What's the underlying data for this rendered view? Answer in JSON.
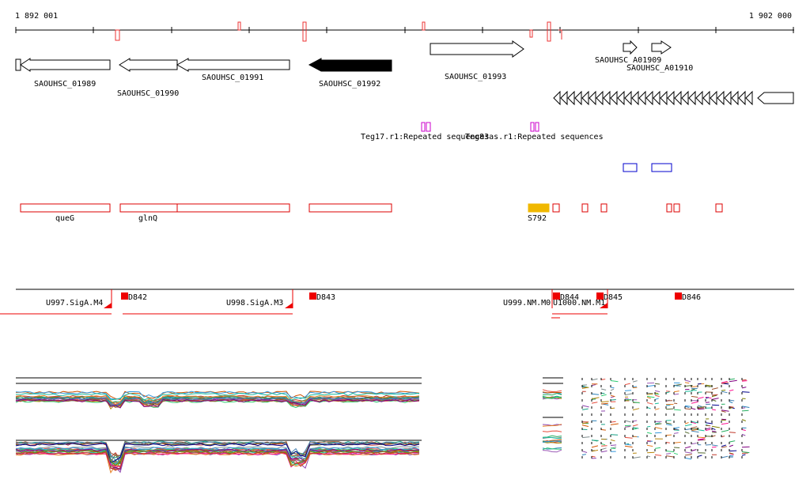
{
  "ruler": {
    "start_label": "1 892 001",
    "end_label": "1 902 000"
  },
  "genes": [
    {
      "label": "SAOUHSC_01989",
      "strand": "-",
      "filled": false
    },
    {
      "label": "SAOUHSC_01990",
      "strand": "-",
      "filled": false
    },
    {
      "label": "SAOUHSC_01991",
      "strand": "-",
      "filled": false
    },
    {
      "label": "SAOUHSC_01992",
      "strand": "-",
      "filled": true
    },
    {
      "label": "SAOUHSC_01993",
      "strand": "+",
      "filled": false
    },
    {
      "label": "SAOUHSC_A01909",
      "strand": "+",
      "filled": false
    },
    {
      "label": "SAOUHSC_A01910",
      "strand": "+",
      "filled": false
    }
  ],
  "repeats": [
    {
      "label": "Teg17.r1:Repeated sequences"
    },
    {
      "label": "Teg83as.r1:Repeated sequences"
    }
  ],
  "features": [
    {
      "label": "queG"
    },
    {
      "label": "glnQ"
    },
    {
      "label": "S792"
    }
  ],
  "segments": [
    {
      "label": "U997.SigA.M4"
    },
    {
      "label": "U998.SigA.M3"
    },
    {
      "label": "U999.NM.M0"
    },
    {
      "label": "U1000.NM.M1"
    }
  ],
  "markers": [
    {
      "label": "D842"
    },
    {
      "label": "D843"
    },
    {
      "label": "D844"
    },
    {
      "label": "D845"
    },
    {
      "label": "D846"
    }
  ],
  "colors": {
    "gene_outline": "#000000",
    "gene_filled": "#000000",
    "repeat": "#cc00cc",
    "feature": "#dd0000",
    "feature_highlight": "#f0b800",
    "blue_box": "#0000cc",
    "marker": "#ee0000",
    "ruler": "#000000"
  }
}
